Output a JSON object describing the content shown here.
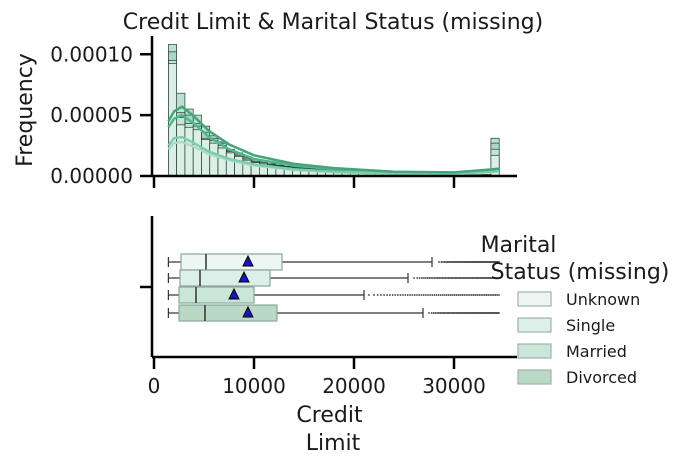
{
  "chart_data": [
    {
      "type": "histogram",
      "title": "Credit Limit & Marital Status (missing)",
      "xlabel": "",
      "ylabel": "Frequency",
      "xlim": [
        -500,
        36000
      ],
      "ylim": [
        0,
        0.000115
      ],
      "yticks": [
        {
          "value": 0,
          "label": "0.00000"
        },
        {
          "value": 5e-05,
          "label": "0.00005"
        },
        {
          "value": 0.0001,
          "label": "0.00010"
        }
      ],
      "bin_start": 1438,
      "bin_width": 827,
      "bins": [
        {
          "all": 0.000108,
          "divorced": 0.000102,
          "married": 9.5e-05,
          "single": 9.25e-05
        },
        {
          "all": 6.8e-05,
          "divorced": 5.2e-05,
          "married": 4.8e-05,
          "single": 4.2e-05
        },
        {
          "all": 5.5e-05,
          "divorced": 5e-05,
          "married": 4.3e-05,
          "single": 4e-05
        },
        {
          "all": 5e-05,
          "divorced": 4.3e-05,
          "married": 4.1e-05,
          "single": 3.8e-05
        },
        {
          "all": 4.1e-05,
          "divorced": 3.6e-05,
          "married": 3.1e-05,
          "single": 3e-05
        },
        {
          "all": 3.3e-05,
          "divorced": 3.1e-05,
          "married": 2.9e-05,
          "single": 2.7e-05
        },
        {
          "all": 2.8e-05,
          "divorced": 2.7e-05,
          "married": 2.5e-05,
          "single": 2.3e-05
        },
        {
          "all": 2.2e-05,
          "divorced": 2.1e-05,
          "married": 2e-05,
          "single": 1.9e-05
        },
        {
          "all": 1.9e-05,
          "divorced": 1.8e-05,
          "married": 1.7e-05,
          "single": 1.6e-05
        },
        {
          "all": 1.6e-05,
          "divorced": 1.5e-05,
          "married": 1.4e-05,
          "single": 1.3e-05
        },
        {
          "all": 1.3e-05,
          "divorced": 1.2e-05,
          "married": 1.1e-05,
          "single": 1.1e-05
        },
        {
          "all": 1.2e-05,
          "divorced": 1.1e-05,
          "married": 1e-05,
          "single": 9e-06
        },
        {
          "all": 1e-05,
          "divorced": 9.5e-06,
          "married": 9e-06,
          "single": 8.5e-06
        },
        {
          "all": 9e-06,
          "divorced": 8.5e-06,
          "married": 8e-06,
          "single": 7.5e-06
        },
        {
          "all": 8e-06,
          "divorced": 7.5e-06,
          "married": 7e-06,
          "single": 6.5e-06
        },
        {
          "all": 7.5e-06,
          "divorced": 7e-06,
          "married": 6.5e-06,
          "single": 6e-06
        },
        {
          "all": 7e-06,
          "divorced": 6.5e-06,
          "married": 6e-06,
          "single": 5.5e-06
        },
        {
          "all": 6.5e-06,
          "divorced": 6e-06,
          "married": 5.5e-06,
          "single": 5e-06
        },
        {
          "all": 6e-06,
          "divorced": 5.5e-06,
          "married": 5e-06,
          "single": 4.5e-06
        },
        {
          "all": 5.5e-06,
          "divorced": 5e-06,
          "married": 4.5e-06,
          "single": 4e-06
        },
        {
          "all": 5e-06,
          "divorced": 4.5e-06,
          "married": 4e-06,
          "single": 3.5e-06
        },
        {
          "all": 4.5e-06,
          "divorced": 4e-06,
          "married": 3.5e-06,
          "single": 3e-06
        },
        {
          "all": 4e-06,
          "divorced": 3.5e-06,
          "married": 3e-06,
          "single": 2.8e-06
        },
        {
          "all": 3.5e-06,
          "divorced": 3e-06,
          "married": 2.8e-06,
          "single": 2.5e-06
        },
        {
          "all": 3e-06,
          "divorced": 2.8e-06,
          "married": 2.5e-06,
          "single": 2.2e-06
        },
        {
          "all": 2.8e-06,
          "divorced": 2.5e-06,
          "married": 2.2e-06,
          "single": 2e-06
        },
        {
          "all": 2.5e-06,
          "divorced": 2.2e-06,
          "married": 2e-06,
          "single": 1.8e-06
        },
        {
          "all": 2.2e-06,
          "divorced": 2e-06,
          "married": 1.8e-06,
          "single": 1.6e-06
        },
        {
          "all": 2e-06,
          "divorced": 1.8e-06,
          "married": 1.6e-06,
          "single": 1.4e-06
        },
        {
          "all": 1.8e-06,
          "divorced": 1.6e-06,
          "married": 1.4e-06,
          "single": 1.2e-06
        },
        {
          "all": 1.6e-06,
          "divorced": 1.4e-06,
          "married": 1.2e-06,
          "single": 1e-06
        },
        {
          "all": 1.5e-06,
          "divorced": 1.3e-06,
          "married": 1.1e-06,
          "single": 1e-06
        },
        {
          "all": 1.4e-06,
          "divorced": 1.2e-06,
          "married": 1e-06,
          "single": 9e-07
        },
        {
          "all": 1.3e-06,
          "divorced": 1.1e-06,
          "married": 1e-06,
          "single": 9e-07
        },
        {
          "all": 1.2e-06,
          "divorced": 1e-06,
          "married": 9e-07,
          "single": 8e-07
        },
        {
          "all": 1.2e-06,
          "divorced": 1e-06,
          "married": 9e-07,
          "single": 8e-07
        },
        {
          "all": 1.1e-06,
          "divorced": 9e-07,
          "married": 8e-07,
          "single": 7e-07
        },
        {
          "all": 1.1e-06,
          "divorced": 9e-07,
          "married": 8e-07,
          "single": 7e-07
        },
        {
          "all": 1.2e-06,
          "divorced": 1e-06,
          "married": 9e-07,
          "single": 8e-07
        },
        {
          "all": 3.1e-05,
          "divorced": 2.7e-05,
          "married": 2.2e-05,
          "single": 1.7e-05
        }
      ],
      "kde": [
        {
          "name": "Unknown",
          "x": [
            1438,
            2000,
            2800,
            4000,
            5500,
            7500,
            10000,
            14000,
            18000,
            24000,
            30000,
            33500,
            34500
          ],
          "y": [
            4e-05,
            4.7e-05,
            5e-05,
            4.3e-05,
            3.2e-05,
            2.2e-05,
            1.4e-05,
            8.5e-06,
            5.5e-06,
            3e-06,
            2.5e-06,
            4.5e-06,
            5.5e-06
          ]
        },
        {
          "name": "Single",
          "x": [
            1438,
            2000,
            2800,
            4000,
            5500,
            7500,
            10000,
            14000,
            18000,
            24000,
            30000,
            33500,
            34500
          ],
          "y": [
            2.2e-05,
            2.7e-05,
            2.8e-05,
            2.4e-05,
            1.8e-05,
            1.3e-05,
            8.5e-06,
            5e-06,
            3.2e-06,
            1.8e-06,
            1.5e-06,
            3e-06,
            3.8e-06
          ]
        },
        {
          "name": "Married",
          "x": [
            1438,
            2000,
            2800,
            4000,
            5500,
            7500,
            10000,
            14000,
            18000,
            24000,
            30000,
            33500,
            34500
          ],
          "y": [
            2.5e-05,
            3.1e-05,
            3.2e-05,
            2.7e-05,
            2e-05,
            1.4e-05,
            9.5e-06,
            5.5e-06,
            3.5e-06,
            2e-06,
            1.7e-06,
            3.5e-06,
            4.2e-06
          ]
        },
        {
          "name": "Divorced",
          "x": [
            1438,
            2000,
            2800,
            4000,
            5500,
            7500,
            10000,
            14000,
            18000,
            24000,
            30000,
            33500,
            34500
          ],
          "y": [
            4.5e-05,
            5.3e-05,
            5.7e-05,
            4.9e-05,
            3.7e-05,
            2.6e-05,
            1.7e-05,
            1e-05,
            6.5e-06,
            3.5e-06,
            3e-06,
            5.2e-06,
            6e-06
          ]
        }
      ]
    },
    {
      "type": "box",
      "title": "",
      "xlabel": "Credit\nLimit",
      "ylabel": "",
      "xlim": [
        -500,
        36000
      ],
      "xticks": [
        {
          "value": 0,
          "label": "0"
        },
        {
          "value": 10000,
          "label": "10000"
        },
        {
          "value": 20000,
          "label": "20000"
        },
        {
          "value": 30000,
          "label": "30000"
        }
      ],
      "legend": {
        "title": "Marital\nStatus (missing)",
        "position": "right"
      },
      "series": [
        {
          "name": "Unknown",
          "color": "#eef6f3",
          "min": 1438,
          "q1": 2700,
          "median": 5200,
          "q3": 12800,
          "whisker_high": 27800,
          "mean": 9400,
          "outliers_start": 28500,
          "outliers_end": 34500
        },
        {
          "name": "Single",
          "color": "#dcefe8",
          "min": 1438,
          "q1": 2600,
          "median": 4600,
          "q3": 11600,
          "whisker_high": 25400,
          "mean": 9000,
          "outliers_start": 26000,
          "outliers_end": 34500
        },
        {
          "name": "Married",
          "color": "#c9e6d8",
          "min": 1438,
          "q1": 2500,
          "median": 4200,
          "q3": 10000,
          "whisker_high": 21000,
          "mean": 8000,
          "outliers_start": 21500,
          "outliers_end": 34500
        },
        {
          "name": "Divorced",
          "color": "#b9d9c6",
          "min": 1438,
          "q1": 2500,
          "median": 5100,
          "q3": 12300,
          "whisker_high": 26900,
          "mean": 9400,
          "outliers_start": 27500,
          "outliers_end": 34500
        }
      ]
    }
  ]
}
